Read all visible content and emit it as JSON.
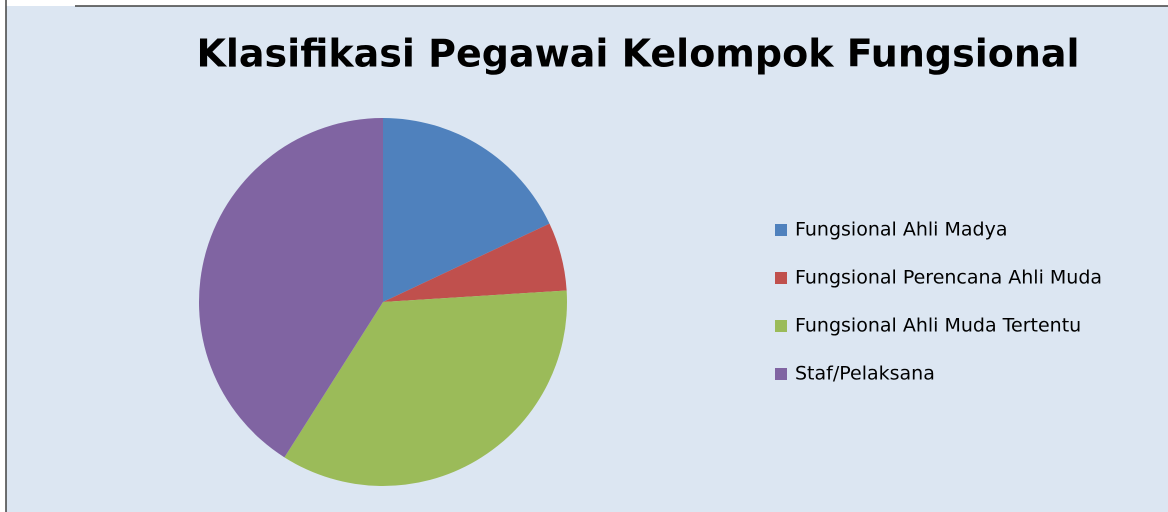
{
  "chart_data": {
    "type": "pie",
    "title": "Klasifikasi Pegawai Kelompok Fungsional",
    "categories": [
      "Fungsional Ahli Madya",
      "Fungsional Perencana Ahli Muda",
      "Fungsional Ahli Muda Tertentu",
      "Staf/Pelaksana"
    ],
    "values": [
      18,
      6,
      35,
      41
    ],
    "colors": [
      "#4f81bd",
      "#c0504d",
      "#9bbb59",
      "#8064a2"
    ],
    "legend": "right"
  }
}
